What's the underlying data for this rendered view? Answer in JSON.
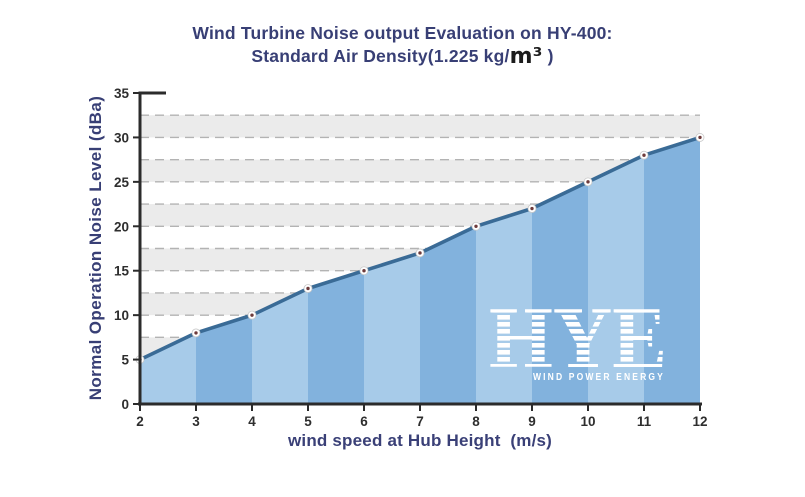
{
  "title": {
    "line1": "Wind Turbine Noise output Evaluation on HY-400:",
    "line2_prefix": "Standard Air Density(1.225 kg/",
    "line2_unit": "m³",
    "line2_suffix": " )"
  },
  "axes": {
    "x_label": "wind speed at Hub Height  (m/s)",
    "y_label": "Normal Operation Noise  Level (dBa)"
  },
  "chart_data": {
    "type": "area",
    "title": "Wind Turbine Noise output Evaluation on HY-400: Standard Air Density(1.225 kg/m³ )",
    "xlabel": "wind speed at Hub Height (m/s)",
    "ylabel": "Normal Operation Noise Level (dBa)",
    "x": [
      2,
      3,
      4,
      5,
      6,
      7,
      8,
      9,
      10,
      11,
      12
    ],
    "series": [
      {
        "name": "Normal Operation Noise Level",
        "values": [
          5,
          8,
          10,
          13,
          15,
          17,
          20,
          22,
          25,
          28,
          30
        ]
      }
    ],
    "x_ticks": [
      2,
      3,
      4,
      5,
      6,
      7,
      8,
      9,
      10,
      11,
      12
    ],
    "y_ticks": [
      0,
      5,
      10,
      15,
      20,
      25,
      30,
      35
    ],
    "xlim": [
      2,
      12
    ],
    "ylim": [
      0,
      35
    ],
    "grid": "dashed horizontal lines every 2.5 dBa with alternating gray/white bands",
    "legend": "none"
  },
  "watermark": {
    "text": "HYE",
    "tagline": "WIND POWER ENERGY"
  },
  "colors": {
    "background": "#ffffff",
    "band_light": "#a7cbe9",
    "band_dark": "#82b2dd",
    "line": "#3a6b96",
    "marker_fill": "#ffffff",
    "marker_ring": "#c8c8c8",
    "marker_dot": "#6e3b3b",
    "stripe_gray": "#ebebeb",
    "grid_dash": "#b3b3b3",
    "axis": "#2b2b2b",
    "title_text": "#383f75",
    "unit_text": "#1c1c1c",
    "tick_text": "#2e2e2e",
    "axis_label_text": "#3a4077",
    "watermark_text": "#ffffff"
  }
}
